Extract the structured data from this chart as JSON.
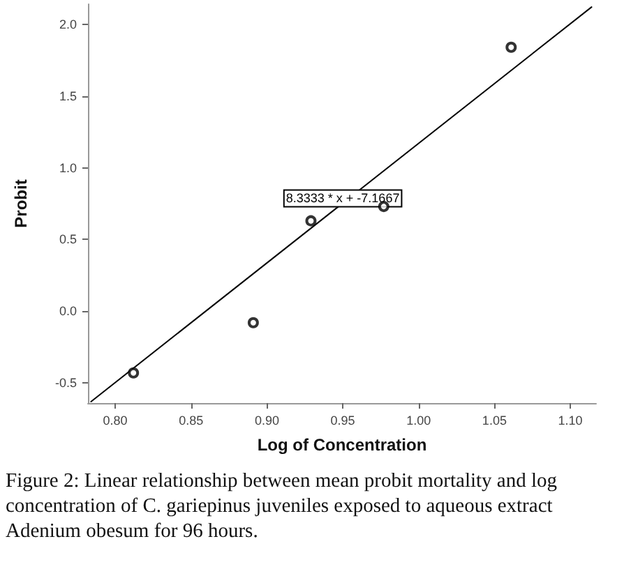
{
  "chart_data": {
    "type": "scatter",
    "xlabel": "Log of Concentration",
    "ylabel": "Probit",
    "series": [
      {
        "type": "scatter",
        "color": "#000000",
        "marker": "circle",
        "x": [
          0.812,
          0.891,
          0.929,
          0.977,
          1.061
        ],
        "values": [
          -0.43,
          -0.08,
          0.63,
          0.73,
          1.84
        ]
      },
      {
        "type": "line",
        "color": "#000000",
        "marker": "none",
        "x": [
          0.784,
          1.114
        ],
        "values": [
          -0.63,
          2.12
        ]
      }
    ],
    "xlim": [
      0.782,
      1.117
    ],
    "ylim": [
      -0.64,
      2.14
    ],
    "xticks": [
      {
        "value": 0.8,
        "label": "0.80"
      },
      {
        "value": 0.85,
        "label": "0.85"
      },
      {
        "value": 0.9,
        "label": "0.90"
      },
      {
        "value": 0.95,
        "label": "0.95"
      },
      {
        "value": 1.0,
        "label": "1.00"
      },
      {
        "value": 1.05,
        "label": "1.05"
      },
      {
        "value": 1.1,
        "label": "1.10"
      }
    ],
    "yticks": [
      {
        "value": -0.5,
        "label": "-0.5"
      },
      {
        "value": 0,
        "label": "0.0"
      },
      {
        "value": 0.5,
        "label": "0.5"
      },
      {
        "value": 1.0,
        "label": "1.0"
      },
      {
        "value": 1.5,
        "label": "1.5"
      },
      {
        "value": 2.0,
        "label": "2.0"
      }
    ],
    "grid": false,
    "annotations": [
      {
        "text": "8.3333 * x + -7.1667",
        "x": 0.95,
        "y": 0.787
      },
      "Figure 2: Linear relationship between mean probit mortality and log concentration of C. gariepinus juveniles exposed to aqueous extract Adenium obesum for 96 hours."
    ]
  }
}
